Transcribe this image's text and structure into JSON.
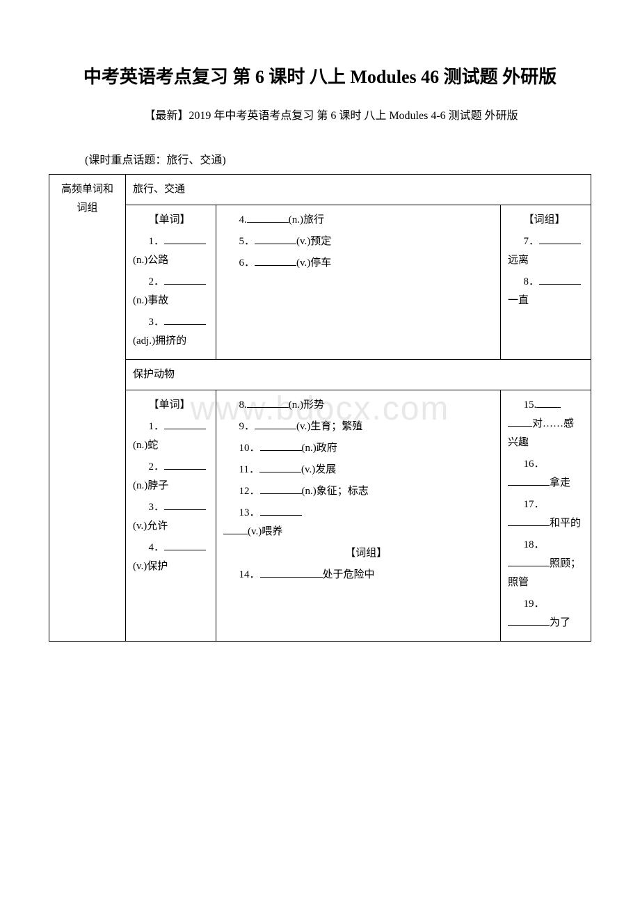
{
  "title": "中考英语考点复习 第 6 课时 八上 Modules 46 测试题 外研版",
  "subtitle": "【最新】2019 年中考英语考点复习 第 6 课时 八上 Modules 4-6 测试题 外研版",
  "topic_note": "(课时重点话题：旅行、交通)",
  "side_label": "高频单词和词组",
  "watermark": "www.bdocx.com",
  "section1": {
    "header": "旅行、交通",
    "col1": {
      "heading": "【单词】",
      "items": [
        {
          "num": "1．",
          "suffix": "(n.)公路"
        },
        {
          "num": "2．",
          "suffix": "(n.)事故"
        },
        {
          "num": "3．",
          "suffix": "(adj.)拥挤的"
        }
      ]
    },
    "col2": {
      "items": [
        {
          "num": "4.",
          "suffix": "(n.)旅行"
        },
        {
          "num": "5．",
          "suffix": "(v.)预定"
        },
        {
          "num": "6．",
          "suffix": "(v.)停车"
        }
      ]
    },
    "col3": {
      "heading": "【词组】",
      "items": [
        {
          "num": "7．",
          "suffix": "远离"
        },
        {
          "num": "8．",
          "suffix": "一直"
        }
      ]
    }
  },
  "section2": {
    "header": "保护动物",
    "col1": {
      "heading": "【单词】",
      "items": [
        {
          "num": "1．",
          "suffix": "(n.)蛇"
        },
        {
          "num": "2．",
          "suffix": "(n.)脖子"
        },
        {
          "num": "3．",
          "suffix": "(v.)允许"
        },
        {
          "num": "4．",
          "suffix": "(v.)保护"
        }
      ]
    },
    "col2": {
      "items_a": [
        {
          "num": "8.",
          "suffix": "(n.)形势"
        },
        {
          "num": "9．",
          "suffix": "(v.)生育；繁殖"
        },
        {
          "num": "10．",
          "suffix": "(n.)政府"
        },
        {
          "num": "11．",
          "suffix": "(v.)发展"
        },
        {
          "num": "12．",
          "suffix": "(n.)象征；标志"
        },
        {
          "num": "13．",
          "suffix": "(v.)喂养"
        }
      ],
      "heading_b": "【词组】",
      "items_b": [
        {
          "num": "14．",
          "suffix": "处于危险中"
        }
      ]
    },
    "col3": {
      "items": [
        {
          "num": "15.",
          "suffix": "对……感兴趣"
        },
        {
          "num": "16．",
          "suffix": "拿走"
        },
        {
          "num": "17．",
          "suffix": "和平的"
        },
        {
          "num": "18．",
          "suffix": "照顾；照管"
        },
        {
          "num": "19．",
          "suffix": "为了"
        }
      ]
    }
  }
}
